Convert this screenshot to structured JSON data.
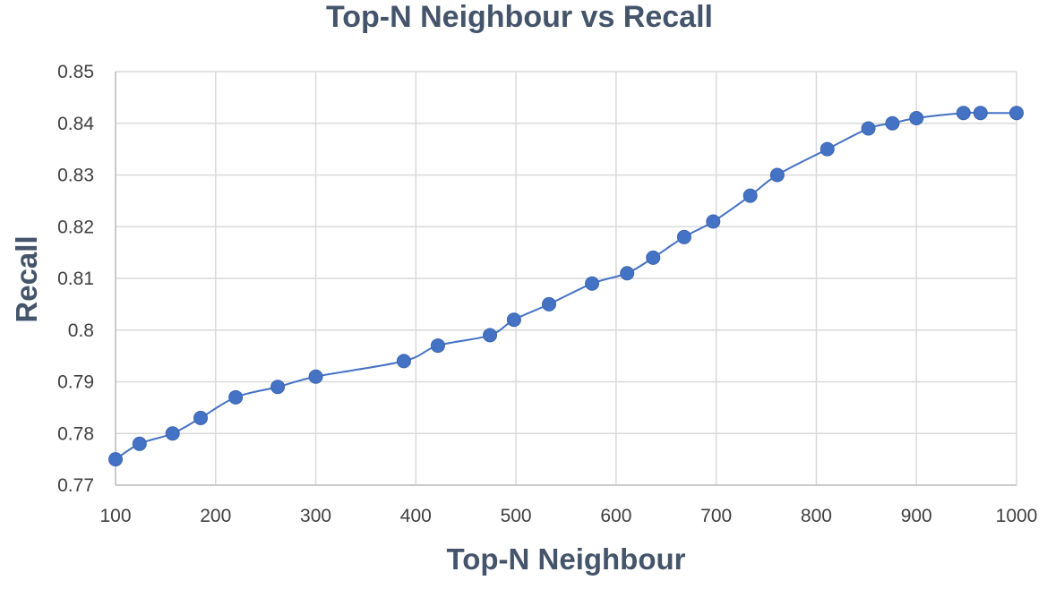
{
  "chart_data": {
    "type": "line",
    "title": "Top-N Neighbour vs Recall",
    "xlabel": "Top-N Neighbour",
    "ylabel": "Recall",
    "xlim": [
      100,
      1000
    ],
    "ylim": [
      0.77,
      0.85
    ],
    "xticks": [
      "100",
      "200",
      "300",
      "400",
      "500",
      "600",
      "700",
      "800",
      "900",
      "1000"
    ],
    "yticks": [
      "0.77",
      "0.78",
      "0.79",
      "0.8",
      "0.81",
      "0.82",
      "0.83",
      "0.84",
      "0.85"
    ],
    "grid": true,
    "legend": "none",
    "markers": true,
    "smooth": true,
    "color": "#4472c4",
    "x": [
      100,
      124,
      157,
      185,
      220,
      262,
      300,
      388,
      422,
      474,
      498,
      533,
      576,
      611,
      637,
      668,
      697,
      734,
      761,
      811,
      852,
      876,
      900,
      947,
      964,
      1000
    ],
    "y": [
      0.775,
      0.778,
      0.78,
      0.783,
      0.787,
      0.789,
      0.791,
      0.794,
      0.797,
      0.799,
      0.802,
      0.805,
      0.809,
      0.811,
      0.814,
      0.818,
      0.821,
      0.826,
      0.83,
      0.835,
      0.839,
      0.84,
      0.841,
      0.842,
      0.842,
      0.842
    ]
  }
}
